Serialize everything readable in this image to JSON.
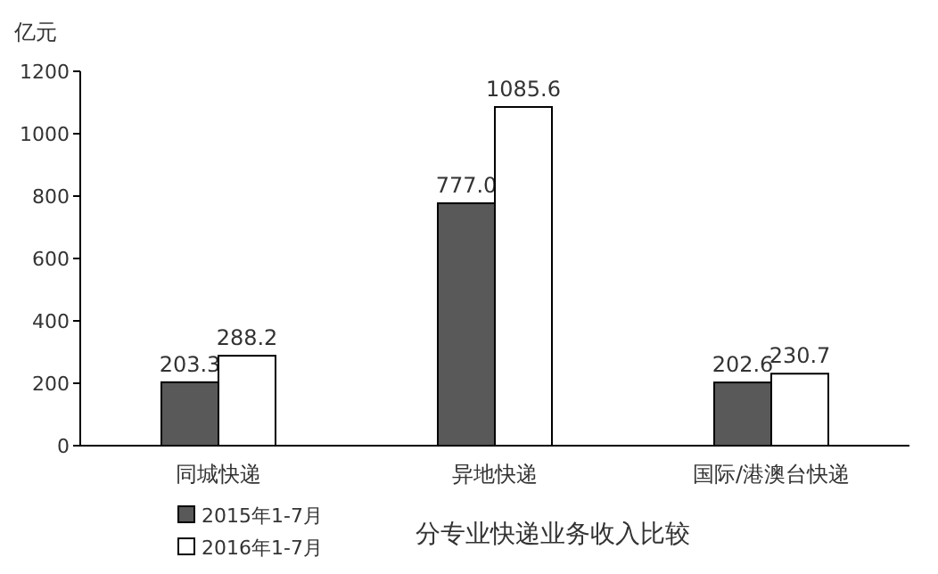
{
  "chart_data": {
    "type": "bar",
    "title": "分专业快递业务收入比较",
    "ylabel": "亿元",
    "categories": [
      "同城快递",
      "异地快递",
      "国际/港澳台快递"
    ],
    "series": [
      {
        "name": "2015年1-7月",
        "color": "#595959",
        "values": [
          203.3,
          777.0,
          202.6
        ],
        "value_labels": [
          "203.3",
          "777.0",
          "202.6"
        ]
      },
      {
        "name": "2016年1-7月",
        "color": "#ffffff",
        "values": [
          288.2,
          1085.6,
          230.7
        ],
        "value_labels": [
          "288.2",
          "1085.6",
          "230.7"
        ]
      }
    ],
    "ylim": [
      0,
      1200
    ],
    "yticks": [
      0,
      200,
      400,
      600,
      800,
      1000,
      1200
    ],
    "grid": false,
    "legend": "bottom left"
  }
}
